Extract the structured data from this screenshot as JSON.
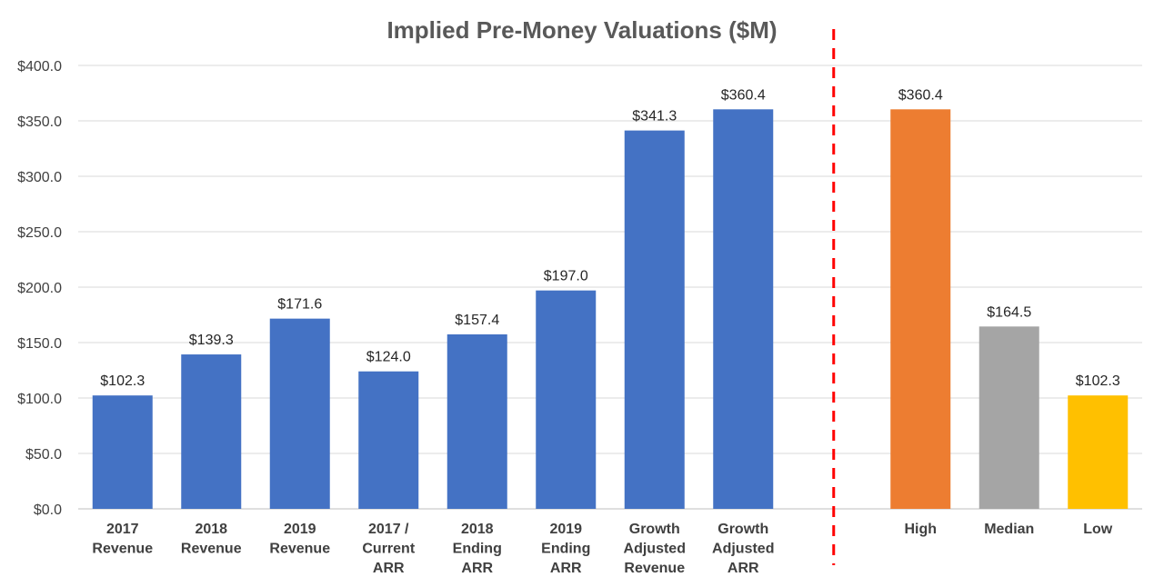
{
  "chart_data": {
    "type": "bar",
    "title": "Implied Pre-Money Valuations ($M)",
    "xlabel": "",
    "ylabel": "",
    "ylim": [
      0,
      400
    ],
    "yticks": [
      "$0.0",
      "$50.0",
      "$100.0",
      "$150.0",
      "$200.0",
      "$250.0",
      "$300.0",
      "$350.0",
      "$400.0"
    ],
    "ytick_values": [
      0,
      50,
      100,
      150,
      200,
      250,
      300,
      350,
      400
    ],
    "grid": true,
    "legend": "none",
    "separator": {
      "style": "dashed",
      "color": "#ff0000",
      "after_category_index": 7
    },
    "bars": [
      {
        "label": [
          "2017",
          "Revenue"
        ],
        "value": 102.3,
        "data_label": "$102.3",
        "color": "#4472c4"
      },
      {
        "label": [
          "2018",
          "Revenue"
        ],
        "value": 139.3,
        "data_label": "$139.3",
        "color": "#4472c4"
      },
      {
        "label": [
          "2019",
          "Revenue"
        ],
        "value": 171.6,
        "data_label": "$171.6",
        "color": "#4472c4"
      },
      {
        "label": [
          "2017 /",
          "Current",
          "ARR"
        ],
        "value": 124.0,
        "data_label": "$124.0",
        "color": "#4472c4"
      },
      {
        "label": [
          "2018",
          "Ending",
          "ARR"
        ],
        "value": 157.4,
        "data_label": "$157.4",
        "color": "#4472c4"
      },
      {
        "label": [
          "2019",
          "Ending",
          "ARR"
        ],
        "value": 197.0,
        "data_label": "$197.0",
        "color": "#4472c4"
      },
      {
        "label": [
          "Growth",
          "Adjusted",
          "Revenue"
        ],
        "value": 341.3,
        "data_label": "$341.3",
        "color": "#4472c4"
      },
      {
        "label": [
          "Growth",
          "Adjusted",
          "ARR"
        ],
        "value": 360.4,
        "data_label": "$360.4",
        "color": "#4472c4"
      },
      {
        "label": [
          "High"
        ],
        "value": 360.4,
        "data_label": "$360.4",
        "color": "#ed7d31"
      },
      {
        "label": [
          "Median"
        ],
        "value": 164.5,
        "data_label": "$164.5",
        "color": "#a5a5a5"
      },
      {
        "label": [
          "Low"
        ],
        "value": 102.3,
        "data_label": "$102.3",
        "color": "#ffc000"
      }
    ]
  }
}
